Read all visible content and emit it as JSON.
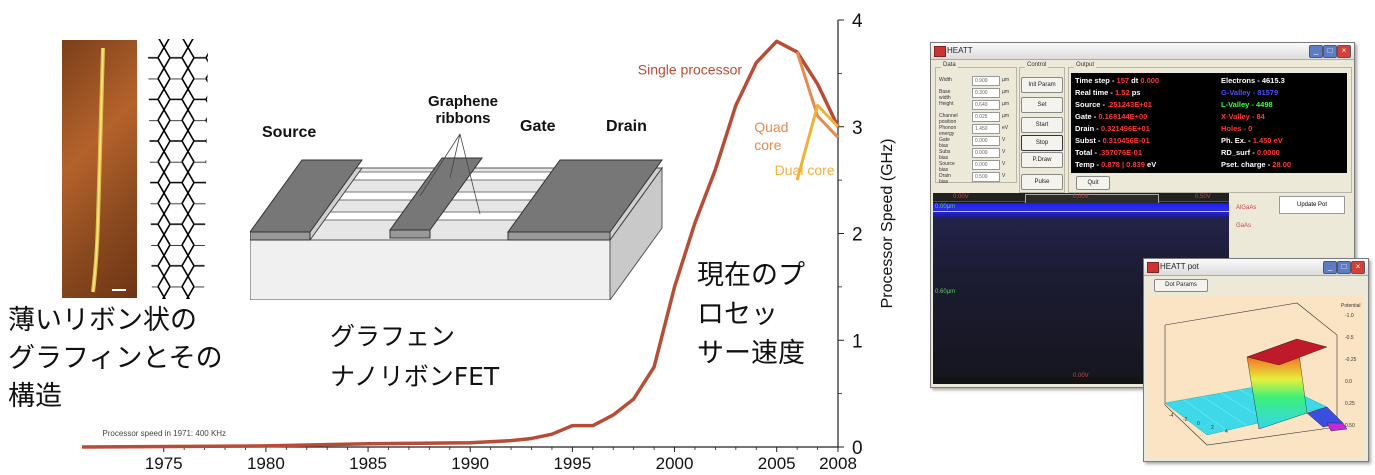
{
  "left": {
    "caption_lines": [
      "薄いリボン状の",
      "グラフィンとその",
      "構造"
    ]
  },
  "fet": {
    "labels": {
      "source": "Source",
      "graphene": "Graphene",
      "ribbons": "ribbons",
      "gate": "Gate",
      "drain": "Drain"
    },
    "caption_lines": [
      "グラフェン",
      "ナノリボンFET"
    ]
  },
  "chart_caption_lines": [
    "現在のプ",
    "ロセッ",
    "サー速度"
  ],
  "chart_data": {
    "type": "line",
    "ylabel": "Processor Speed (GHz)",
    "ylim": [
      0,
      4
    ],
    "xlim": [
      1971,
      2008
    ],
    "x_ticks": [
      "1975",
      "1980",
      "1985",
      "1990",
      "1995",
      "2000",
      "2005",
      "2008"
    ],
    "y_ticks": [
      "0",
      "1",
      "2",
      "3",
      "4"
    ],
    "annotation": "Processor speed in 1971: 400 KHz",
    "series": [
      {
        "name": "Single processor",
        "color": "#b84c36",
        "x": [
          1971,
          1980,
          1985,
          1990,
          1992,
          1993,
          1994,
          1995,
          1996,
          1997,
          1998,
          1999,
          2000,
          2001,
          2002,
          2003,
          2004,
          2005,
          2006,
          2007,
          2008
        ],
        "y": [
          0.0004,
          0.01,
          0.03,
          0.04,
          0.06,
          0.08,
          0.12,
          0.2,
          0.2,
          0.3,
          0.45,
          0.75,
          1.5,
          2.1,
          2.6,
          3.2,
          3.6,
          3.8,
          3.7,
          3.4,
          3.0
        ]
      },
      {
        "name": "Quad core",
        "color": "#e8894e",
        "x": [
          2006,
          2007,
          2008
        ],
        "y": [
          3.7,
          3.1,
          2.9
        ]
      },
      {
        "name": "Dual core",
        "color": "#f1b03a",
        "x": [
          2006,
          2007,
          2008
        ],
        "y": [
          2.5,
          3.2,
          3.0
        ]
      }
    ]
  },
  "simulator": {
    "title": "HEATT",
    "groups": {
      "data": "Data",
      "control": "Control",
      "output": "Output"
    },
    "params": [
      {
        "label": "Width",
        "value": "0.900",
        "unit": "µm"
      },
      {
        "label": "Base width",
        "value": "0.300",
        "unit": "µm"
      },
      {
        "label": "Height",
        "value": "0.640",
        "unit": "µm"
      },
      {
        "label": "Channel position",
        "value": "0.025",
        "unit": "µm"
      },
      {
        "label": "Phonon energy",
        "value": "1.450",
        "unit": "eV"
      },
      {
        "label": "Gate bias",
        "value": "0.000",
        "unit": "V"
      },
      {
        "label": "Subs bias",
        "value": "0.000",
        "unit": "V"
      },
      {
        "label": "Source bias",
        "value": "0.000",
        "unit": "V"
      },
      {
        "label": "Drain bias",
        "value": "0.500",
        "unit": "V"
      }
    ],
    "buttons": [
      "Init Param",
      "Set",
      "Start",
      "Stop",
      "P.Draw",
      "Pulse"
    ],
    "quit": "Quit",
    "update_plot": "Update Pot",
    "output_left": [
      {
        "k": "Time step - ",
        "v": "157",
        "k2": "  dt ",
        "v2": "0.000"
      },
      {
        "k": "Real time - ",
        "v": "1.52",
        "k2": "  ps",
        "v2": ""
      },
      {
        "k": "Source - ",
        "v": ".251243E+01",
        "k2": "",
        "v2": ""
      },
      {
        "k": "Gate - ",
        "v": "0.168144E+00",
        "k2": "",
        "v2": ""
      },
      {
        "k": "Drain - ",
        "v": "0.321496E+01",
        "k2": "",
        "v2": ""
      },
      {
        "k": "Subst - ",
        "v": "0.310456E-01",
        "k2": "",
        "v2": ""
      },
      {
        "k": "Total - ",
        "v": ".357076E-01",
        "k2": "",
        "v2": ""
      },
      {
        "k": "Temp - ",
        "v": "0.878 | 0.839",
        "k2": "  eV",
        "v2": ""
      }
    ],
    "output_right": [
      {
        "k": "Electrons - ",
        "v": "4615.3"
      },
      {
        "k": "G-Valley - ",
        "v": "81579"
      },
      {
        "k": "L-Valley - ",
        "v": "4498"
      },
      {
        "k": "X-Valley - ",
        "v": "84"
      },
      {
        "k": "Holes - ",
        "v": "0"
      },
      {
        "k": "Ph. Ex. - ",
        "v": "1.450  eV"
      },
      {
        "k": "RD_surf - ",
        "v": "0.0000"
      },
      {
        "k": "Pset. charge - ",
        "v": "28.00"
      }
    ],
    "plot_top": [
      "0.00V",
      "0.00V",
      "0.50V"
    ],
    "plot_bottom": "0.00V",
    "y_marks": [
      "0.00µm",
      "0.60µm"
    ],
    "right_marks": [
      "AlGaAs",
      "GaAs"
    ]
  },
  "potwin": {
    "title": "HEATT pot",
    "button": "Dot Params",
    "z_label": "Potential",
    "z_ticks": [
      "-1.0",
      "-0.5",
      "-0.25",
      "0.0",
      "0.25",
      "0.50"
    ],
    "x_ticks": [
      "-4",
      "-2",
      "0",
      "2",
      "4"
    ]
  }
}
